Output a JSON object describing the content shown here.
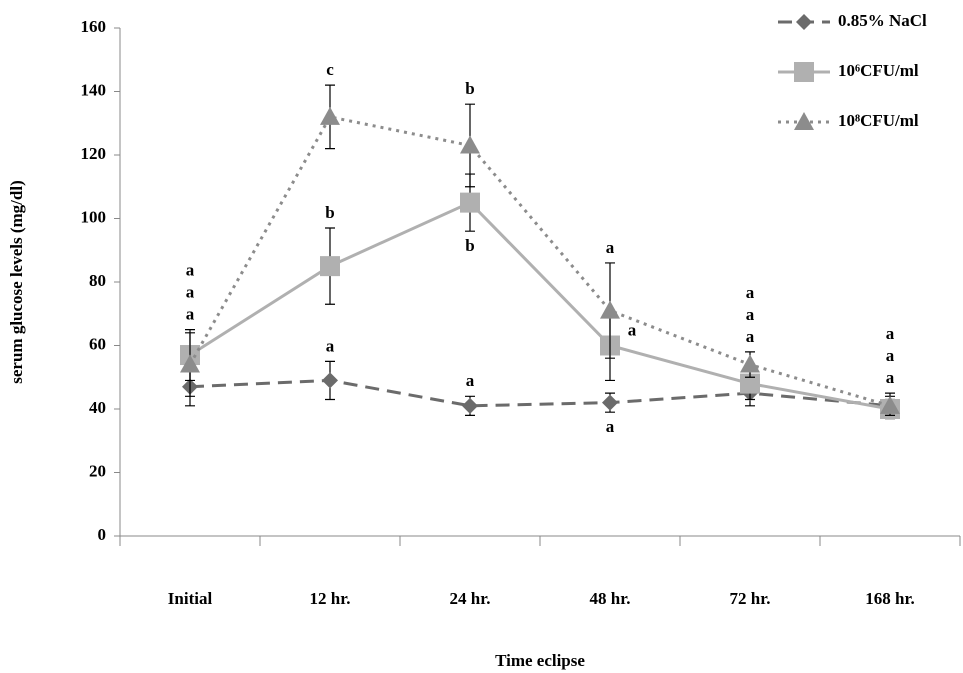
{
  "chart_data": {
    "type": "line",
    "x_label": "Time eclipse",
    "y_label": "serum glucose levels (mg/dl)",
    "categories": [
      "Initial",
      "12 hr.",
      "24 hr.",
      "48 hr.",
      "72 hr.",
      "168 hr."
    ],
    "ylim": [
      0,
      160
    ],
    "yticks": [
      0,
      20,
      40,
      60,
      80,
      100,
      120,
      140,
      160
    ],
    "legend": "top-right",
    "series": [
      {
        "name": "0.85% NaCl",
        "color": "#6b6b6b",
        "dash": "dashed",
        "marker": "diamond",
        "values": [
          47,
          49,
          41,
          42,
          45,
          41
        ],
        "errors": [
          6,
          6,
          3,
          3,
          4,
          4
        ],
        "letters": [
          "a",
          "a",
          "a",
          "a",
          "a",
          "a"
        ]
      },
      {
        "name": "10⁶CFU/ml",
        "color": "#b0b0b0",
        "dash": "solid",
        "marker": "square",
        "values": [
          57,
          85,
          105,
          60,
          48,
          40
        ],
        "errors": [
          8,
          12,
          9,
          11,
          5,
          3
        ],
        "letters": [
          "a",
          "b",
          "b",
          "a",
          "a",
          "a"
        ]
      },
      {
        "name": "10⁸CFU/ml",
        "color": "#8c8c8c",
        "dash": "dotted",
        "marker": "triangle",
        "values": [
          54,
          132,
          123,
          71,
          54,
          41
        ],
        "errors": [
          10,
          10,
          13,
          15,
          4,
          3
        ],
        "letters": [
          "a",
          "c",
          "b",
          "a",
          "a",
          "a"
        ]
      }
    ]
  }
}
